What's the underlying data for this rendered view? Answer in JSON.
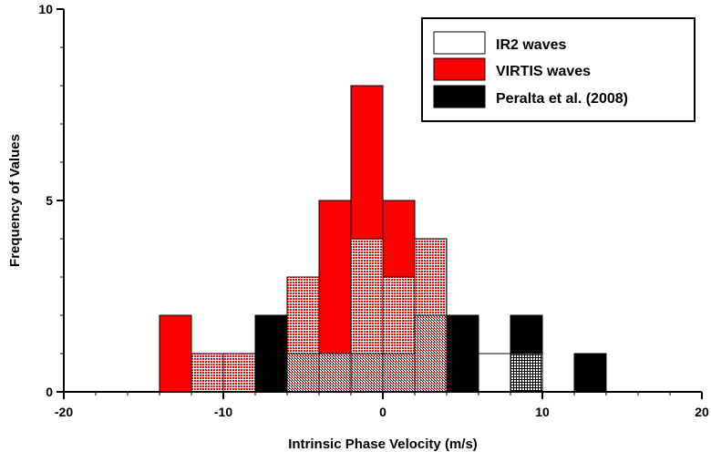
{
  "chart_data": {
    "type": "bar",
    "xlabel": "Intrinsic Phase Velocity (m/s)",
    "ylabel": "Frequency of Values",
    "xlim": [
      -20,
      20
    ],
    "ylim": [
      0,
      10
    ],
    "xticks": [
      -20,
      -10,
      0,
      10,
      20
    ],
    "yticks": [
      0,
      5,
      10
    ],
    "bin_width": 2,
    "legend_position": "top-right",
    "series": [
      {
        "name": "VIRTIS waves",
        "color": "#ff0000",
        "bins": [
          {
            "x0": -14,
            "x1": -12,
            "count": 2
          },
          {
            "x0": -12,
            "x1": -10,
            "count": 1
          },
          {
            "x0": -10,
            "x1": -8,
            "count": 1
          },
          {
            "x0": -6,
            "x1": -4,
            "count": 3
          },
          {
            "x0": -4,
            "x1": -2,
            "count": 5
          },
          {
            "x0": -2,
            "x1": 0,
            "count": 8
          },
          {
            "x0": 0,
            "x1": 2,
            "count": 5
          },
          {
            "x0": 2,
            "x1": 4,
            "count": 4
          }
        ]
      },
      {
        "name": "IR2 waves",
        "color": "#ffffff",
        "bins": [
          {
            "x0": -12,
            "x1": -10,
            "count": 1
          },
          {
            "x0": -10,
            "x1": -8,
            "count": 1
          },
          {
            "x0": -6,
            "x1": -4,
            "count": 3
          },
          {
            "x0": -4,
            "x1": -2,
            "count": 1
          },
          {
            "x0": -2,
            "x1": 0,
            "count": 4
          },
          {
            "x0": 0,
            "x1": 2,
            "count": 3
          },
          {
            "x0": 2,
            "x1": 4,
            "count": 4
          },
          {
            "x0": 6,
            "x1": 8,
            "count": 1
          },
          {
            "x0": 8,
            "x1": 10,
            "count": 1
          }
        ]
      },
      {
        "name": "Peralta et al. (2008)",
        "color": "#000000",
        "bins": [
          {
            "x0": -8,
            "x1": -6,
            "count": 2
          },
          {
            "x0": -6,
            "x1": -4,
            "count": 1
          },
          {
            "x0": -4,
            "x1": -2,
            "count": 1
          },
          {
            "x0": -2,
            "x1": 0,
            "count": 1
          },
          {
            "x0": 0,
            "x1": 2,
            "count": 1
          },
          {
            "x0": 2,
            "x1": 4,
            "count": 2
          },
          {
            "x0": 4,
            "x1": 6,
            "count": 2
          },
          {
            "x0": 8,
            "x1": 10,
            "count": 2
          },
          {
            "x0": 12,
            "x1": 14,
            "count": 1
          }
        ]
      }
    ]
  }
}
